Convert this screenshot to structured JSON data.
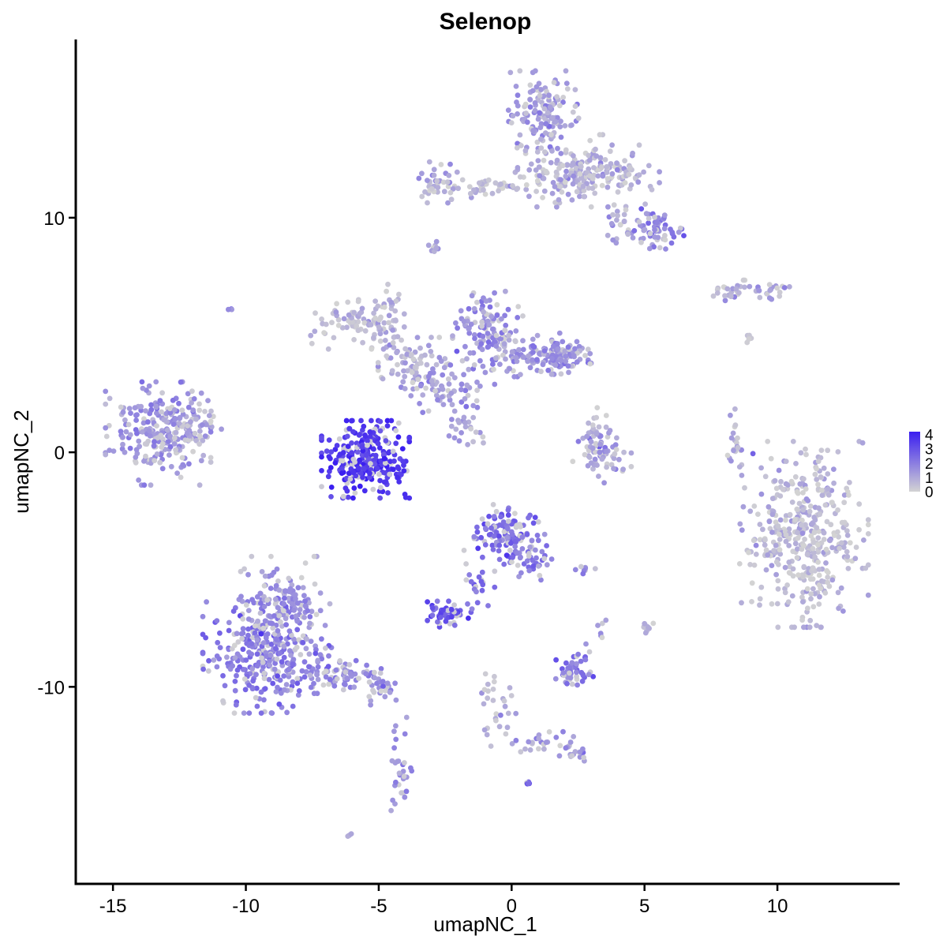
{
  "chart_data": {
    "type": "scatter",
    "title": "Selenop",
    "xlabel": "umapNC_1",
    "ylabel": "umapNC_2",
    "xlim": [
      -16.4,
      14.6
    ],
    "ylim": [
      -18.4,
      17.6
    ],
    "x_ticks": [
      -15,
      -10,
      -5,
      0,
      5,
      10
    ],
    "x_tick_labels": [
      "-15",
      "-10",
      "-5",
      "0",
      "5",
      "10"
    ],
    "y_ticks": [
      -10,
      0,
      10
    ],
    "y_tick_labels": [
      "-10",
      "0",
      "10"
    ],
    "grid": false,
    "legend": {
      "type": "colorbar",
      "placement": "right",
      "min": 0,
      "max": 4.2,
      "ticks": [
        0,
        1,
        2,
        3,
        4
      ],
      "tick_labels": [
        "0",
        "1",
        "2",
        "3",
        "4"
      ],
      "low_color": "#d3d3d3",
      "high_color": "#3b1ff0"
    },
    "clusters": [
      {
        "x": -13.3,
        "y": 0.8,
        "sx": 0.9,
        "sy": 1.0,
        "n": 240,
        "expr": 1.5
      },
      {
        "x": -11.8,
        "y": 1.2,
        "sx": 0.4,
        "sy": 0.6,
        "n": 40,
        "expr": 1.0
      },
      {
        "x": -5.5,
        "y": -0.3,
        "sx": 0.75,
        "sy": 0.75,
        "n": 280,
        "expr": 3.6
      },
      {
        "x": -5.8,
        "y": 5.5,
        "sx": 0.8,
        "sy": 0.5,
        "n": 90,
        "expr": 0.6
      },
      {
        "x": -3.7,
        "y": 3.8,
        "sx": 0.6,
        "sy": 0.5,
        "n": 70,
        "expr": 0.9
      },
      {
        "x": -4.6,
        "y": 5.5,
        "sx": 0.25,
        "sy": 1.0,
        "n": 35,
        "expr": 0.8
      },
      {
        "x": -2.4,
        "y": 2.8,
        "sx": 0.8,
        "sy": 0.5,
        "n": 70,
        "expr": 1.3
      },
      {
        "x": -0.9,
        "y": 5.1,
        "sx": 0.6,
        "sy": 0.8,
        "n": 120,
        "expr": 1.6
      },
      {
        "x": 0.9,
        "y": 4.1,
        "sx": 0.9,
        "sy": 0.4,
        "n": 90,
        "expr": 1.5
      },
      {
        "x": 1.9,
        "y": 4.2,
        "sx": 0.5,
        "sy": 0.4,
        "n": 70,
        "expr": 1.5
      },
      {
        "x": -1.6,
        "y": 1.0,
        "sx": 0.5,
        "sy": 0.4,
        "n": 25,
        "expr": 1.0
      },
      {
        "x": 3.4,
        "y": -0.2,
        "sx": 0.5,
        "sy": 0.5,
        "n": 60,
        "expr": 1.2
      },
      {
        "x": 3.2,
        "y": 0.8,
        "sx": 0.3,
        "sy": 0.5,
        "n": 25,
        "expr": 1.2
      },
      {
        "x": 8.4,
        "y": 0.0,
        "sx": 0.15,
        "sy": 0.9,
        "n": 20,
        "expr": 0.8
      },
      {
        "x": 1.2,
        "y": 14.5,
        "sx": 0.6,
        "sy": 0.8,
        "n": 140,
        "expr": 1.3
      },
      {
        "x": 2.0,
        "y": 12.0,
        "sx": 0.9,
        "sy": 0.7,
        "n": 130,
        "expr": 0.9
      },
      {
        "x": 3.8,
        "y": 12.0,
        "sx": 0.8,
        "sy": 0.5,
        "n": 90,
        "expr": 0.9
      },
      {
        "x": 5.6,
        "y": 9.5,
        "sx": 0.4,
        "sy": 0.4,
        "n": 50,
        "expr": 2.0
      },
      {
        "x": 4.5,
        "y": 9.7,
        "sx": 0.4,
        "sy": 0.5,
        "n": 40,
        "expr": 1.2
      },
      {
        "x": -2.8,
        "y": 11.5,
        "sx": 0.4,
        "sy": 0.4,
        "n": 40,
        "expr": 0.9
      },
      {
        "x": -1.0,
        "y": 11.3,
        "sx": 0.9,
        "sy": 0.2,
        "n": 40,
        "expr": 0.6
      },
      {
        "x": -2.9,
        "y": 8.8,
        "sx": 0.1,
        "sy": 0.15,
        "n": 8,
        "expr": 1.2
      },
      {
        "x": 8.1,
        "y": 6.8,
        "sx": 0.5,
        "sy": 0.15,
        "n": 22,
        "expr": 0.8
      },
      {
        "x": 9.6,
        "y": 6.9,
        "sx": 0.4,
        "sy": 0.2,
        "n": 22,
        "expr": 1.3
      },
      {
        "x": 11.0,
        "y": -3.5,
        "sx": 1.1,
        "sy": 1.8,
        "n": 420,
        "expr": 0.7
      },
      {
        "x": -0.2,
        "y": -3.5,
        "sx": 0.55,
        "sy": 0.6,
        "n": 120,
        "expr": 2.4
      },
      {
        "x": 0.8,
        "y": -4.6,
        "sx": 0.4,
        "sy": 0.5,
        "n": 40,
        "expr": 2.0
      },
      {
        "x": -1.3,
        "y": -5.5,
        "sx": 0.3,
        "sy": 0.6,
        "n": 25,
        "expr": 2.3
      },
      {
        "x": -2.4,
        "y": -6.9,
        "sx": 0.35,
        "sy": 0.25,
        "n": 50,
        "expr": 3.0
      },
      {
        "x": -9.2,
        "y": -8.7,
        "sx": 1.1,
        "sy": 1.1,
        "n": 320,
        "expr": 2.0
      },
      {
        "x": -8.6,
        "y": -6.2,
        "sx": 0.8,
        "sy": 0.8,
        "n": 130,
        "expr": 1.6
      },
      {
        "x": -6.5,
        "y": -9.4,
        "sx": 0.7,
        "sy": 0.4,
        "n": 70,
        "expr": 1.7
      },
      {
        "x": -4.9,
        "y": -10.0,
        "sx": 0.3,
        "sy": 0.35,
        "n": 30,
        "expr": 1.8
      },
      {
        "x": -4.2,
        "y": -13.5,
        "sx": 0.2,
        "sy": 1.0,
        "n": 30,
        "expr": 1.6
      },
      {
        "x": 2.3,
        "y": -9.4,
        "sx": 0.35,
        "sy": 0.25,
        "n": 45,
        "expr": 2.2
      },
      {
        "x": 2.6,
        "y": -8.7,
        "sx": 0.15,
        "sy": 0.3,
        "n": 10,
        "expr": 2.0
      },
      {
        "x": -0.5,
        "y": -10.8,
        "sx": 0.3,
        "sy": 0.8,
        "n": 30,
        "expr": 0.8
      },
      {
        "x": 1.2,
        "y": -12.4,
        "sx": 0.6,
        "sy": 0.25,
        "n": 25,
        "expr": 1.0
      },
      {
        "x": 2.4,
        "y": -12.8,
        "sx": 0.25,
        "sy": 0.2,
        "n": 15,
        "expr": 1.5
      },
      {
        "x": 0.6,
        "y": -14.1,
        "sx": 0.05,
        "sy": 0.05,
        "n": 6,
        "expr": 3.0
      },
      {
        "x": 5.0,
        "y": -7.5,
        "sx": 0.15,
        "sy": 0.15,
        "n": 10,
        "expr": 0.9
      },
      {
        "x": 2.8,
        "y": -5.0,
        "sx": 0.2,
        "sy": 0.08,
        "n": 8,
        "expr": 1.5
      },
      {
        "x": 3.4,
        "y": -7.6,
        "sx": 0.1,
        "sy": 0.2,
        "n": 6,
        "expr": 1.5
      },
      {
        "x": -10.6,
        "y": 6.1,
        "sx": 0.05,
        "sy": 0.05,
        "n": 3,
        "expr": 1.5
      },
      {
        "x": -6.1,
        "y": -16.3,
        "sx": 0.1,
        "sy": 0.05,
        "n": 3,
        "expr": 1.0
      },
      {
        "x": 8.9,
        "y": 4.8,
        "sx": 0.1,
        "sy": 0.2,
        "n": 5,
        "expr": 0.5
      }
    ]
  }
}
